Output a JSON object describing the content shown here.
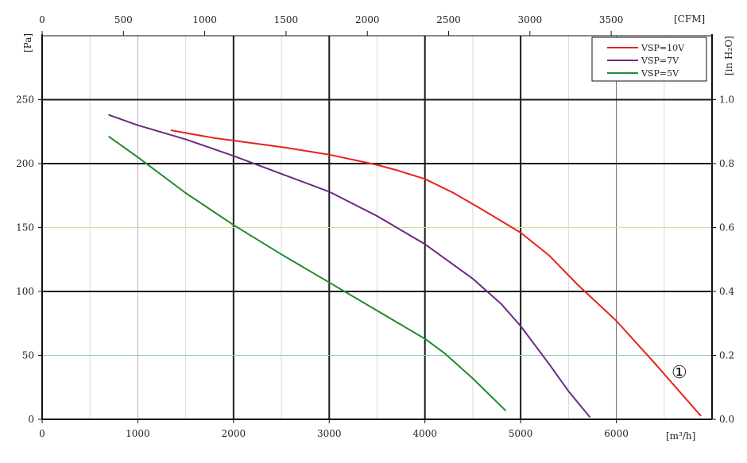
{
  "chart_data": {
    "type": "line",
    "x_bottom": {
      "unit": "[m³/h]",
      "range": [
        0,
        7000
      ],
      "ticks": [
        0,
        1000,
        2000,
        3000,
        4000,
        5000,
        6000
      ]
    },
    "x_top": {
      "unit": "[CFM]",
      "range": [
        0,
        4120
      ],
      "ticks": [
        0,
        500,
        1000,
        1500,
        2000,
        2500,
        3000,
        3500
      ]
    },
    "y_left": {
      "unit": "[Pa]",
      "range": [
        0,
        300
      ],
      "ticks": [
        0,
        50,
        100,
        150,
        200,
        250
      ]
    },
    "y_right": {
      "unit": "[in H₂O]",
      "range": [
        0,
        1.2
      ],
      "tick_values": [
        0,
        0.2,
        0.4,
        0.6,
        0.8,
        1.0
      ],
      "tick_labels": [
        "0.0",
        "0.2",
        "0.4",
        "0.6",
        "0.8",
        "1.0"
      ]
    },
    "grid": true,
    "legend": {
      "position": "top-right"
    },
    "series": [
      {
        "name": "VSP=10V",
        "color": "#e8211f",
        "x": [
          1350,
          1500,
          1800,
          2000,
          2500,
          3000,
          3500,
          3700,
          4000,
          4300,
          4600,
          5000,
          5300,
          5600,
          6000,
          6400,
          6880
        ],
        "y": [
          226,
          224,
          220,
          218,
          213,
          207,
          199,
          195,
          188,
          177,
          164,
          146,
          128,
          105,
          77,
          44,
          3
        ]
      },
      {
        "name": "VSP=7V",
        "color": "#6b2a82",
        "x": [
          700,
          1000,
          1500,
          2000,
          2500,
          3000,
          3500,
          4000,
          4500,
          4800,
          5000,
          5300,
          5500,
          5720
        ],
        "y": [
          238,
          230,
          219,
          206,
          192,
          178,
          159,
          137,
          110,
          90,
          73,
          43,
          22,
          2
        ]
      },
      {
        "name": "VSP=5V",
        "color": "#1f8b2c",
        "x": [
          700,
          1000,
          1500,
          2000,
          2500,
          3000,
          3500,
          4000,
          4200,
          4500,
          4840
        ],
        "y": [
          221,
          205,
          177,
          152,
          129,
          107,
          85,
          63,
          52,
          32,
          7
        ]
      }
    ],
    "annotations": [
      {
        "text": "①",
        "x": 6700,
        "y": 38
      }
    ]
  }
}
